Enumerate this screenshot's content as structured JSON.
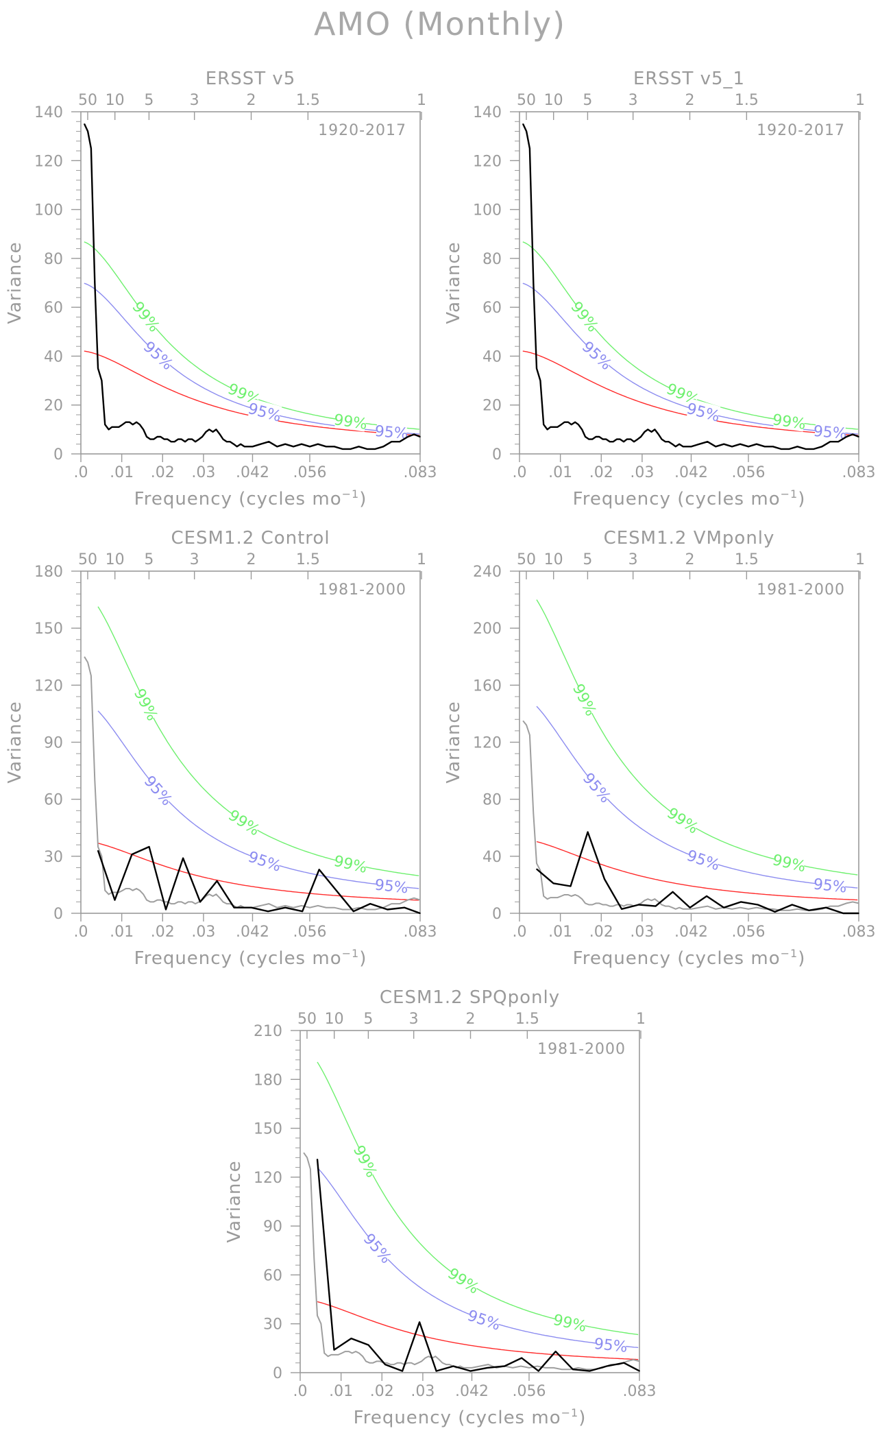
{
  "page_title": "AMO (Monthly)",
  "colors": {
    "observed": "#000000",
    "reference_gray": "#9e9e9e",
    "red_noise": "#ff2a2a",
    "sig95": "#8c8cf0",
    "sig99": "#6ef06e",
    "axis": "#9a9a9a"
  },
  "common": {
    "xlabel": "Frequency (cycles mo",
    "xlabel_sup": "−1",
    "ylabel": "Variance",
    "bottom_ticks": [
      {
        "value": 0.0,
        "label": ".0"
      },
      {
        "value": 0.01,
        "label": ".01"
      },
      {
        "value": 0.02,
        "label": ".02"
      },
      {
        "value": 0.03,
        "label": ".03"
      },
      {
        "value": 0.042,
        "label": ".042"
      },
      {
        "value": 0.056,
        "label": ".056"
      },
      {
        "value": 0.083,
        "label": ".083"
      }
    ],
    "top_ticks": [
      {
        "value": 0.00167,
        "label": "50"
      },
      {
        "value": 0.00833,
        "label": "10"
      },
      {
        "value": 0.01667,
        "label": "5"
      },
      {
        "value": 0.02778,
        "label": "3"
      },
      {
        "value": 0.04167,
        "label": "2"
      },
      {
        "value": 0.05556,
        "label": "1.5"
      },
      {
        "value": 0.08333,
        "label": "1"
      }
    ],
    "xlim": [
      0,
      0.083
    ],
    "label_95": "95%",
    "label_99": "99%"
  },
  "chart_data": [
    {
      "type": "line",
      "title": "ERSST v5",
      "period": "1920-2017",
      "ylim": [
        0,
        140
      ],
      "yticks": [
        0,
        20,
        40,
        60,
        80,
        100,
        120,
        140
      ],
      "peak": 140,
      "series": [
        {
          "role": "observed",
          "x": [
            0.00085,
            0.0017,
            0.0025,
            0.0034,
            0.0042,
            0.0051,
            0.0059,
            0.0068,
            0.0076,
            0.0085,
            0.0093,
            0.0102,
            0.011,
            0.0119,
            0.0127,
            0.0136,
            0.0144,
            0.0153,
            0.0161,
            0.017,
            0.0178,
            0.0187,
            0.0195,
            0.0204,
            0.0212,
            0.0221,
            0.0229,
            0.0238,
            0.0246,
            0.0255,
            0.0263,
            0.0272,
            0.028,
            0.0289,
            0.0297,
            0.0306,
            0.0314,
            0.0323,
            0.0331,
            0.034,
            0.0348,
            0.0357,
            0.0365,
            0.0374,
            0.0382,
            0.0391,
            0.04,
            0.042,
            0.044,
            0.046,
            0.048,
            0.05,
            0.052,
            0.054,
            0.056,
            0.058,
            0.06,
            0.062,
            0.064,
            0.066,
            0.068,
            0.07,
            0.072,
            0.074,
            0.076,
            0.078,
            0.08,
            0.0815,
            0.083
          ],
          "y": [
            135,
            132,
            125,
            70,
            35,
            30,
            12,
            10,
            11,
            11,
            11,
            12,
            13,
            13,
            12,
            13,
            12,
            10,
            7,
            6,
            6,
            7,
            7,
            6,
            6,
            5,
            5,
            6,
            6,
            5,
            6,
            6,
            5,
            6,
            7,
            9,
            10,
            9,
            10,
            8,
            6,
            5,
            5,
            4,
            3,
            4,
            3,
            3,
            4,
            5,
            3,
            4,
            3,
            4,
            3,
            4,
            3,
            3,
            2,
            2,
            3,
            2,
            2,
            3,
            5,
            5,
            7,
            8,
            7
          ]
        }
      ]
    },
    {
      "type": "line",
      "title": "ERSST v5_1",
      "period": "1920-2017",
      "ylim": [
        0,
        140
      ],
      "yticks": [
        0,
        20,
        40,
        60,
        80,
        100,
        120,
        140
      ],
      "peak": 140,
      "series": [
        {
          "role": "observed",
          "x": [
            0.00085,
            0.0017,
            0.0025,
            0.0034,
            0.0042,
            0.0051,
            0.0059,
            0.0068,
            0.0076,
            0.0085,
            0.0093,
            0.0102,
            0.011,
            0.0119,
            0.0127,
            0.0136,
            0.0144,
            0.0153,
            0.0161,
            0.017,
            0.0178,
            0.0187,
            0.0195,
            0.0204,
            0.0212,
            0.0221,
            0.0229,
            0.0238,
            0.0246,
            0.0255,
            0.0263,
            0.0272,
            0.028,
            0.0289,
            0.0297,
            0.0306,
            0.0314,
            0.0323,
            0.0331,
            0.034,
            0.0348,
            0.0357,
            0.0365,
            0.0374,
            0.0382,
            0.0391,
            0.04,
            0.042,
            0.044,
            0.046,
            0.048,
            0.05,
            0.052,
            0.054,
            0.056,
            0.058,
            0.06,
            0.062,
            0.064,
            0.066,
            0.068,
            0.07,
            0.072,
            0.074,
            0.076,
            0.078,
            0.08,
            0.0815,
            0.083
          ],
          "y": [
            135,
            132,
            125,
            70,
            35,
            30,
            12,
            10,
            11,
            11,
            11,
            12,
            13,
            13,
            12,
            13,
            12,
            10,
            7,
            6,
            6,
            7,
            7,
            6,
            6,
            5,
            5,
            6,
            6,
            5,
            6,
            6,
            5,
            6,
            7,
            9,
            10,
            9,
            10,
            8,
            6,
            5,
            5,
            4,
            3,
            4,
            3,
            3,
            4,
            5,
            3,
            4,
            3,
            4,
            3,
            4,
            3,
            3,
            2,
            2,
            3,
            2,
            2,
            3,
            5,
            5,
            7,
            8,
            7
          ]
        }
      ]
    },
    {
      "type": "line",
      "title": "CESM1.2 Control",
      "period": "1981-2000",
      "ylim": [
        0,
        180
      ],
      "yticks": [
        0,
        30,
        60,
        90,
        120,
        150,
        180
      ],
      "peak": 165,
      "series": [
        {
          "role": "observed",
          "x": [
            0.0042,
            0.0083,
            0.0125,
            0.0167,
            0.0208,
            0.025,
            0.0292,
            0.0333,
            0.0375,
            0.0417,
            0.0458,
            0.05,
            0.0542,
            0.0583,
            0.0625,
            0.0667,
            0.0708,
            0.075,
            0.0792,
            0.083
          ],
          "y": [
            33,
            7,
            31,
            35,
            2,
            29,
            6,
            17,
            3,
            3,
            1,
            3,
            1,
            23,
            12,
            1,
            5,
            2,
            3,
            0
          ]
        }
      ]
    },
    {
      "type": "line",
      "title": "CESM1.2 VMponly",
      "period": "1981-2000",
      "ylim": [
        0,
        240
      ],
      "yticks": [
        0,
        40,
        80,
        120,
        160,
        200,
        240
      ],
      "peak": 225,
      "series": [
        {
          "role": "observed",
          "x": [
            0.0042,
            0.0083,
            0.0125,
            0.0167,
            0.0208,
            0.025,
            0.0292,
            0.0333,
            0.0375,
            0.0417,
            0.0458,
            0.05,
            0.0542,
            0.0583,
            0.0625,
            0.0667,
            0.0708,
            0.075,
            0.0792,
            0.083
          ],
          "y": [
            31,
            21,
            19,
            57,
            24,
            3,
            6,
            5,
            15,
            4,
            12,
            4,
            8,
            6,
            1,
            6,
            2,
            4,
            0,
            0
          ]
        }
      ]
    },
    {
      "type": "line",
      "title": "CESM1.2 SPQponly",
      "period": "1981-2000",
      "ylim": [
        0,
        210
      ],
      "yticks": [
        0,
        30,
        60,
        90,
        120,
        150,
        180,
        210
      ],
      "peak": 195,
      "series": [
        {
          "role": "observed",
          "x": [
            0.0042,
            0.0083,
            0.0125,
            0.0167,
            0.0208,
            0.025,
            0.0292,
            0.0333,
            0.0375,
            0.0417,
            0.0458,
            0.05,
            0.0542,
            0.0583,
            0.0625,
            0.0667,
            0.0708,
            0.075,
            0.0792,
            0.083
          ],
          "y": [
            131,
            14,
            21,
            17,
            5,
            1,
            31,
            1,
            4,
            1,
            3,
            4,
            9,
            1,
            13,
            2,
            1,
            4,
            6,
            1
          ]
        }
      ]
    }
  ]
}
